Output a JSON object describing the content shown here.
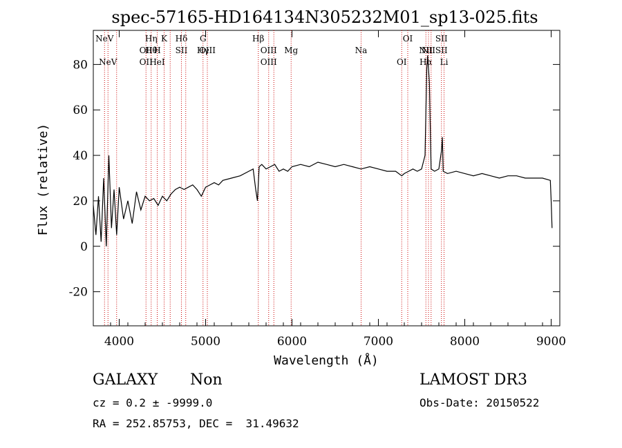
{
  "chart_data": {
    "type": "line",
    "title": "spec-57165-HD164134N305232M01_sp13-025.fits",
    "xlabel": "Wavelength (Å)",
    "ylabel": "Flux (relative)",
    "xlim": [
      3700,
      9100
    ],
    "ylim": [
      -35,
      95
    ],
    "xticks": [
      4000,
      5000,
      6000,
      7000,
      8000,
      9000
    ],
    "yticks": [
      -20,
      0,
      20,
      40,
      60,
      80
    ],
    "grid": false,
    "legend": "none",
    "line_color": "#000000",
    "marker_color": "#cc0000",
    "series": [
      {
        "x": [
          3700,
          3730,
          3760,
          3790,
          3820,
          3850,
          3880,
          3910,
          3940,
          3970,
          4000,
          4050,
          4100,
          4150,
          4200,
          4250,
          4300,
          4350,
          4400,
          4450,
          4500,
          4550,
          4600,
          4650,
          4700,
          4750,
          4800,
          4850,
          4900,
          4950,
          5000,
          5050,
          5100,
          5150,
          5200,
          5300,
          5400,
          5500,
          5550,
          5580,
          5600,
          5620,
          5650,
          5700,
          5750,
          5800,
          5850,
          5900,
          5950,
          6000,
          6100,
          6200,
          6300,
          6400,
          6500,
          6600,
          6700,
          6800,
          6900,
          7000,
          7100,
          7200,
          7270,
          7300,
          7350,
          7400,
          7450,
          7500,
          7540,
          7560,
          7570,
          7590,
          7610,
          7650,
          7700,
          7730,
          7740,
          7750,
          7800,
          7900,
          8000,
          8100,
          8200,
          8300,
          8400,
          8500,
          8600,
          8700,
          8800,
          8900,
          8990,
          9000,
          9010
        ],
        "y": [
          18,
          5,
          22,
          2,
          30,
          0,
          40,
          8,
          25,
          5,
          26,
          12,
          20,
          10,
          24,
          16,
          22,
          20,
          21,
          18,
          22,
          20,
          23,
          25,
          26,
          25,
          26,
          27,
          25,
          22,
          26,
          27,
          28,
          27,
          29,
          30,
          31,
          33,
          34,
          25,
          20,
          35,
          36,
          34,
          35,
          36,
          33,
          34,
          33,
          35,
          36,
          35,
          37,
          36,
          35,
          36,
          35,
          34,
          35,
          34,
          33,
          33,
          31,
          32,
          33,
          34,
          33,
          34,
          40,
          78,
          84,
          72,
          34,
          33,
          34,
          42,
          48,
          33,
          32,
          33,
          32,
          31,
          32,
          31,
          30,
          31,
          31,
          30,
          30,
          30,
          29,
          20,
          8
        ]
      }
    ],
    "lines": [
      {
        "x": 3830,
        "top": "NeV",
        "bottom": ""
      },
      {
        "x": 3870,
        "top": "",
        "bottom": "NeV"
      },
      {
        "x": 3970,
        "top": "",
        "bottom": ""
      },
      {
        "x": 4310,
        "top": "OII",
        "bottom": "OII"
      },
      {
        "x": 4370,
        "top": "Hη",
        "bottom": "Hθ"
      },
      {
        "x": 4440,
        "top": "H",
        "bottom": "HeI"
      },
      {
        "x": 4520,
        "top": "K",
        "bottom": ""
      },
      {
        "x": 4590,
        "top": "",
        "bottom": ""
      },
      {
        "x": 4720,
        "top": "Hδ",
        "bottom": "SII"
      },
      {
        "x": 4770,
        "top": "",
        "bottom": ""
      },
      {
        "x": 4970,
        "top": "G",
        "bottom": "Hγ"
      },
      {
        "x": 5020,
        "top": "OIII",
        "bottom": ""
      },
      {
        "x": 5610,
        "top": "Hβ",
        "bottom": ""
      },
      {
        "x": 5730,
        "top": "OIII",
        "bottom": "OIII"
      },
      {
        "x": 5790,
        "top": "",
        "bottom": ""
      },
      {
        "x": 5990,
        "top": "Mg",
        "bottom": ""
      },
      {
        "x": 6800,
        "top": "",
        "bottom": "Na"
      },
      {
        "x": 7270,
        "top": "",
        "bottom": "OI"
      },
      {
        "x": 7340,
        "top": "OI",
        "bottom": ""
      },
      {
        "x": 7550,
        "top": "NII",
        "bottom": "Hα"
      },
      {
        "x": 7580,
        "top": "",
        "bottom": "NII"
      },
      {
        "x": 7610,
        "top": "",
        "bottom": ""
      },
      {
        "x": 7730,
        "top": "SII",
        "bottom": "SII"
      },
      {
        "x": 7760,
        "top": "",
        "bottom": "Li"
      }
    ]
  },
  "info": {
    "class": "GALAXY",
    "subclass": "Non",
    "survey": "LAMOST DR3",
    "cz": "cz = 0.2 ± -9999.0",
    "obs_date": "Obs-Date: 20150522",
    "coords": "RA = 252.85753, DEC =  31.49632"
  }
}
